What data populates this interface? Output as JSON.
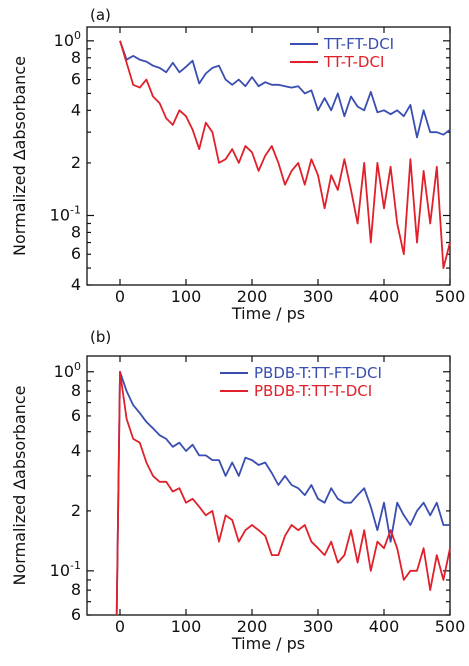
{
  "colors": {
    "blue": "#3a4eb0",
    "red": "#e0202a",
    "axis": "#111111"
  },
  "chart_data": [
    {
      "type": "line",
      "panel_label": "(a)",
      "xlabel": "Time / ps",
      "ylabel": "Normalized ∆absorbance",
      "xlim": [
        -50,
        500
      ],
      "ylim": [
        0.04,
        1.2
      ],
      "yscale": "log",
      "xticks": [
        "0",
        "100",
        "200",
        "300",
        "400",
        "500"
      ],
      "legend_position": "top-right",
      "series": [
        {
          "name": "TT-FT-DCI",
          "color": "#3a4eb0",
          "x": [
            0,
            10,
            20,
            30,
            40,
            50,
            60,
            70,
            80,
            90,
            100,
            110,
            120,
            130,
            140,
            150,
            160,
            170,
            180,
            190,
            200,
            210,
            220,
            230,
            240,
            250,
            260,
            270,
            280,
            290,
            300,
            310,
            320,
            330,
            340,
            350,
            360,
            370,
            380,
            390,
            400,
            410,
            420,
            430,
            440,
            450,
            460,
            470,
            480,
            490,
            500
          ],
          "y": [
            1.0,
            0.78,
            0.82,
            0.78,
            0.76,
            0.72,
            0.7,
            0.66,
            0.75,
            0.66,
            0.71,
            0.77,
            0.57,
            0.65,
            0.7,
            0.72,
            0.6,
            0.56,
            0.6,
            0.55,
            0.62,
            0.55,
            0.58,
            0.56,
            0.56,
            0.55,
            0.54,
            0.55,
            0.5,
            0.52,
            0.4,
            0.47,
            0.4,
            0.5,
            0.37,
            0.48,
            0.42,
            0.4,
            0.51,
            0.39,
            0.4,
            0.38,
            0.4,
            0.37,
            0.43,
            0.28,
            0.4,
            0.3,
            0.3,
            0.29,
            0.31
          ]
        },
        {
          "name": "TT-T-DCI",
          "color": "#e0202a",
          "x": [
            0,
            10,
            20,
            30,
            40,
            50,
            60,
            70,
            80,
            90,
            100,
            110,
            120,
            130,
            140,
            150,
            160,
            170,
            180,
            190,
            200,
            210,
            220,
            230,
            240,
            250,
            260,
            270,
            280,
            290,
            300,
            310,
            320,
            330,
            340,
            350,
            360,
            370,
            380,
            390,
            400,
            410,
            420,
            430,
            440,
            450,
            460,
            470,
            480,
            490,
            500
          ],
          "y": [
            1.0,
            0.75,
            0.56,
            0.54,
            0.6,
            0.48,
            0.44,
            0.36,
            0.33,
            0.4,
            0.37,
            0.31,
            0.24,
            0.34,
            0.3,
            0.2,
            0.21,
            0.24,
            0.2,
            0.25,
            0.23,
            0.18,
            0.22,
            0.25,
            0.2,
            0.15,
            0.18,
            0.2,
            0.15,
            0.21,
            0.17,
            0.11,
            0.17,
            0.14,
            0.21,
            0.14,
            0.09,
            0.2,
            0.07,
            0.2,
            0.11,
            0.19,
            0.09,
            0.06,
            0.21,
            0.07,
            0.18,
            0.09,
            0.19,
            0.05,
            0.07
          ]
        }
      ]
    },
    {
      "type": "line",
      "panel_label": "(b)",
      "xlabel": "Time / ps",
      "ylabel": "Normalized ∆absorbance",
      "xlim": [
        -50,
        500
      ],
      "ylim": [
        0.06,
        1.2
      ],
      "yscale": "log",
      "xticks": [
        "0",
        "100",
        "200",
        "300",
        "400",
        "500"
      ],
      "legend_position": "top-right",
      "series": [
        {
          "name": "PBDB-T:TT-FT-DCI",
          "color": "#3a4eb0",
          "x": [
            -5,
            0,
            10,
            20,
            30,
            40,
            50,
            60,
            70,
            80,
            90,
            100,
            110,
            120,
            130,
            140,
            150,
            160,
            170,
            180,
            190,
            200,
            210,
            220,
            230,
            240,
            250,
            260,
            270,
            280,
            290,
            300,
            310,
            320,
            330,
            340,
            350,
            360,
            370,
            380,
            390,
            400,
            410,
            420,
            430,
            440,
            450,
            460,
            470,
            480,
            490,
            500
          ],
          "y": [
            0.06,
            1.0,
            0.8,
            0.68,
            0.62,
            0.56,
            0.52,
            0.48,
            0.46,
            0.42,
            0.44,
            0.4,
            0.43,
            0.38,
            0.38,
            0.36,
            0.36,
            0.3,
            0.35,
            0.3,
            0.37,
            0.36,
            0.34,
            0.35,
            0.31,
            0.27,
            0.3,
            0.27,
            0.26,
            0.24,
            0.27,
            0.23,
            0.22,
            0.26,
            0.23,
            0.22,
            0.22,
            0.24,
            0.26,
            0.21,
            0.16,
            0.22,
            0.14,
            0.22,
            0.19,
            0.17,
            0.2,
            0.22,
            0.19,
            0.22,
            0.17,
            0.17
          ]
        },
        {
          "name": "PBDB-T:TT-T-DCI",
          "color": "#e0202a",
          "x": [
            -5,
            0,
            10,
            20,
            30,
            40,
            50,
            60,
            70,
            80,
            90,
            100,
            110,
            120,
            130,
            140,
            150,
            160,
            170,
            180,
            190,
            200,
            210,
            220,
            230,
            240,
            250,
            260,
            270,
            280,
            290,
            300,
            310,
            320,
            330,
            340,
            350,
            360,
            370,
            380,
            390,
            400,
            410,
            420,
            430,
            440,
            450,
            460,
            470,
            480,
            490,
            500
          ],
          "y": [
            0.06,
            1.0,
            0.58,
            0.46,
            0.44,
            0.35,
            0.3,
            0.28,
            0.28,
            0.25,
            0.26,
            0.22,
            0.23,
            0.21,
            0.19,
            0.2,
            0.14,
            0.19,
            0.18,
            0.14,
            0.16,
            0.17,
            0.16,
            0.15,
            0.12,
            0.12,
            0.15,
            0.17,
            0.16,
            0.17,
            0.14,
            0.13,
            0.12,
            0.14,
            0.11,
            0.12,
            0.16,
            0.11,
            0.16,
            0.1,
            0.14,
            0.13,
            0.16,
            0.13,
            0.09,
            0.1,
            0.1,
            0.13,
            0.08,
            0.12,
            0.09,
            0.13
          ]
        }
      ]
    }
  ]
}
